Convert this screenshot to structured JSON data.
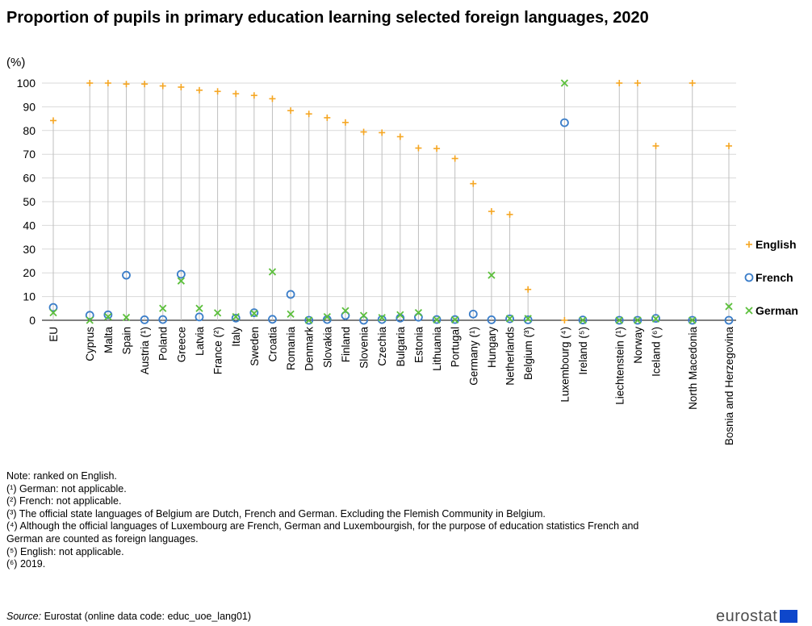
{
  "title": "Proportion of pupils in primary education learning selected foreign languages, 2020",
  "unit_label": "(%)",
  "colors": {
    "english": "#f5a623",
    "french": "#3a7dc9",
    "german": "#5cbf3c",
    "grid": "#d9d9d9",
    "stem": "#bfbfbf"
  },
  "chart_data": {
    "type": "scatter",
    "title": "Proportion of pupils in primary education learning selected foreign languages, 2020",
    "ylabel": "(%)",
    "ylim": [
      0,
      100
    ],
    "yticks": [
      0,
      10,
      20,
      30,
      40,
      50,
      60,
      70,
      80,
      90,
      100
    ],
    "grid": true,
    "legend_position": "right",
    "categories": [
      "EU",
      "Cyprus",
      "Malta",
      "Spain",
      "Austria (¹)",
      "Poland",
      "Greece",
      "Latvia",
      "France (²)",
      "Italy",
      "Sweden",
      "Croatia",
      "Romania",
      "Denmark",
      "Slovakia",
      "Finland",
      "Slovenia",
      "Czechia",
      "Bulgaria",
      "Estonia",
      "Lithuania",
      "Portugal",
      "Germany (¹)",
      "Hungary",
      "Netherlands",
      "Belgium (³)",
      "Luxembourg (⁴)",
      "Ireland (⁵)",
      "Liechtenstein (¹)",
      "Norway",
      "Iceland (⁶)",
      "North Macedonia",
      "Bosnia and Herzegovina"
    ],
    "series": [
      {
        "name": "English",
        "marker": "+",
        "values": [
          84.2,
          100,
          100,
          99.6,
          99.6,
          98.8,
          98.3,
          97,
          96.5,
          95.5,
          94.8,
          93.4,
          88.4,
          87,
          85.4,
          83.4,
          79.4,
          79.1,
          77.4,
          72.6,
          72.4,
          68.2,
          57.6,
          45.9,
          44.6,
          13,
          0,
          null,
          100,
          100,
          73.5,
          100,
          73.5
        ]
      },
      {
        "name": "French",
        "marker": "o",
        "values": [
          5.4,
          2.1,
          2.3,
          19,
          0.2,
          0.3,
          19.4,
          1.4,
          null,
          0.9,
          3.2,
          0.4,
          10.9,
          0,
          0.3,
          2,
          0,
          0.3,
          0.9,
          1.3,
          0.3,
          0.3,
          2.6,
          0.2,
          0.6,
          0.2,
          83.3,
          0.1,
          0,
          0,
          0.8,
          0,
          0
        ]
      },
      {
        "name": "German",
        "marker": "x",
        "values": [
          3.2,
          0,
          1.5,
          1.2,
          null,
          5,
          16.6,
          5,
          3.1,
          1.5,
          2.9,
          20.4,
          2.6,
          0,
          1.5,
          4,
          2,
          1.1,
          2.3,
          3.2,
          0.2,
          0.2,
          null,
          19,
          0.7,
          0.7,
          100,
          0,
          0,
          0,
          0.6,
          0,
          5.8
        ]
      }
    ],
    "gaps_before": [
      1,
      26,
      28,
      31,
      32
    ]
  },
  "notes": [
    "Note: ranked on English.",
    "(¹) German: not applicable.",
    "(²) French: not applicable.",
    "(³) The official state languages of Belgium are Dutch, French and German. Excluding the Flemish Community in Belgium.",
    "(⁴) Although the official languages of Luxembourg are French, German and Luxembourgish, for the purpose of education statistics French and German are counted as foreign languages.",
    "(⁵) English: not applicable.",
    "(⁶) 2019."
  ],
  "source": {
    "prefix": "Source:",
    "text": " Eurostat (online data code: educ_uoe_lang01)"
  },
  "logo": {
    "text": "eurostat"
  }
}
